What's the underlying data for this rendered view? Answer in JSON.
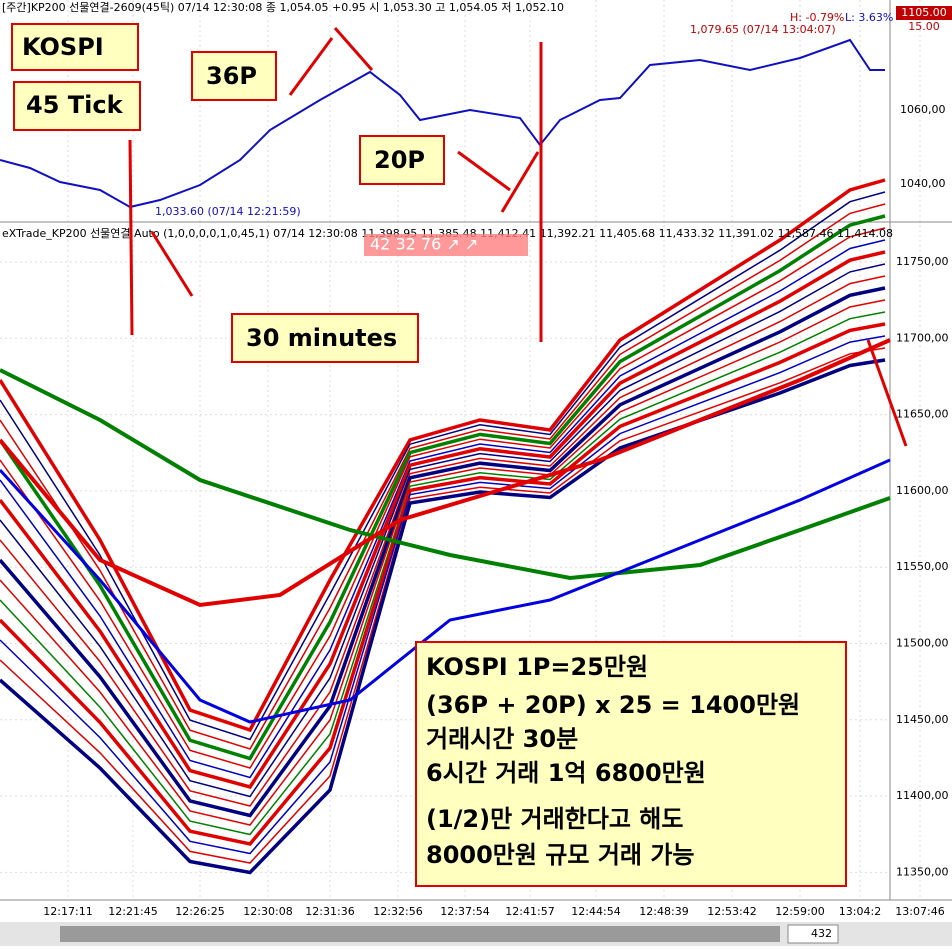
{
  "top_panel": {
    "header": "[주간]KP200 선물연결-2609(45틱) 07/14 12:30:08  종 1,054.05 +0.95  시 1,053.30 고 1,054.05 저 1,052.10",
    "high_label": "1,079.65 (07/14 13:04:07)",
    "low_label": "1,033.60 (07/14 12:21:59)",
    "h_pct": "H: -0.79%",
    "l_pct": "L: 3.63%",
    "price_box": "1105.00",
    "price_sub": "15.00",
    "yticks": [
      "1060,00",
      "1040,00"
    ]
  },
  "lower_panel": {
    "header": "eXTrade_KP200 선물연결 Auto (1,0,0,0,0,1,0,45,1) 07/14 12:30:08 11,398.95 11,385.48 11,412.41 11,392.21 11,405.68 11,433.32 11,391.02 11,587.46 11,414.08",
    "badge": "42  32  76 ↗ ↗",
    "yticks": [
      "11750,00",
      "11700,00",
      "11650,00",
      "11600,00",
      "11550,00",
      "11500,00",
      "11450,00",
      "11400,00",
      "11350,00"
    ]
  },
  "annotations": [
    "KOSPI",
    "45 Tick",
    "36P",
    "20P",
    "30 minutes"
  ],
  "note": [
    "KOSPI 1P=25만원",
    "(36P + 20P) x 25 = 1400만원",
    "거래시간 30분",
    "6시간 거래 1억 6800만원",
    "(1/2)만 거래한다고 해도",
    "8000만원 규모 거래 가능"
  ],
  "xticks": [
    "12:17:11",
    "12:21:45",
    "12:26:25",
    "12:30:08",
    "12:31:36",
    "12:32:56",
    "12:37:54",
    "12:41:57",
    "12:44:54",
    "12:48:39",
    "12:53:42",
    "12:59:00",
    "13:04:2",
    "13:07:46"
  ],
  "scroll_value": "432"
}
